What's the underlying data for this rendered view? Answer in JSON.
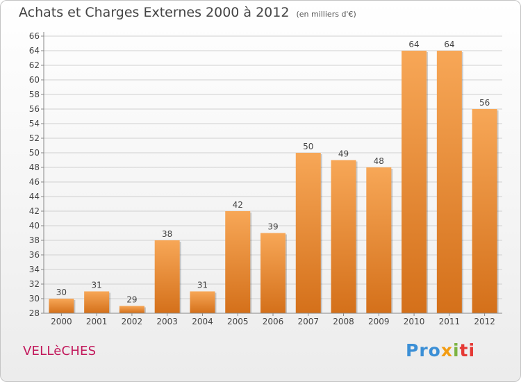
{
  "header": {
    "title": "Achats et Charges Externes 2000 à 2012",
    "unit": "(en milliers d'€)"
  },
  "footer": {
    "town": "VELLèCHES",
    "logo": {
      "p1": "Pro",
      "p2": "x",
      "p3": "i",
      "p4": "ti"
    }
  },
  "colors": {
    "bar_top": "#f7a757",
    "bar_bottom": "#d4701a",
    "grid": "#d0d0d0",
    "town": "#c2185b"
  },
  "chart_data": {
    "type": "bar",
    "categories": [
      "2000",
      "2001",
      "2002",
      "2003",
      "2004",
      "2005",
      "2006",
      "2007",
      "2008",
      "2009",
      "2010",
      "2011",
      "2012"
    ],
    "values": [
      30,
      31,
      29,
      38,
      31,
      42,
      39,
      50,
      49,
      48,
      64,
      64,
      56
    ],
    "ylim": [
      28,
      66
    ],
    "yticks": [
      28,
      30,
      32,
      34,
      36,
      38,
      40,
      42,
      44,
      46,
      48,
      50,
      52,
      54,
      56,
      58,
      60,
      62,
      64,
      66
    ],
    "grid": true
  }
}
